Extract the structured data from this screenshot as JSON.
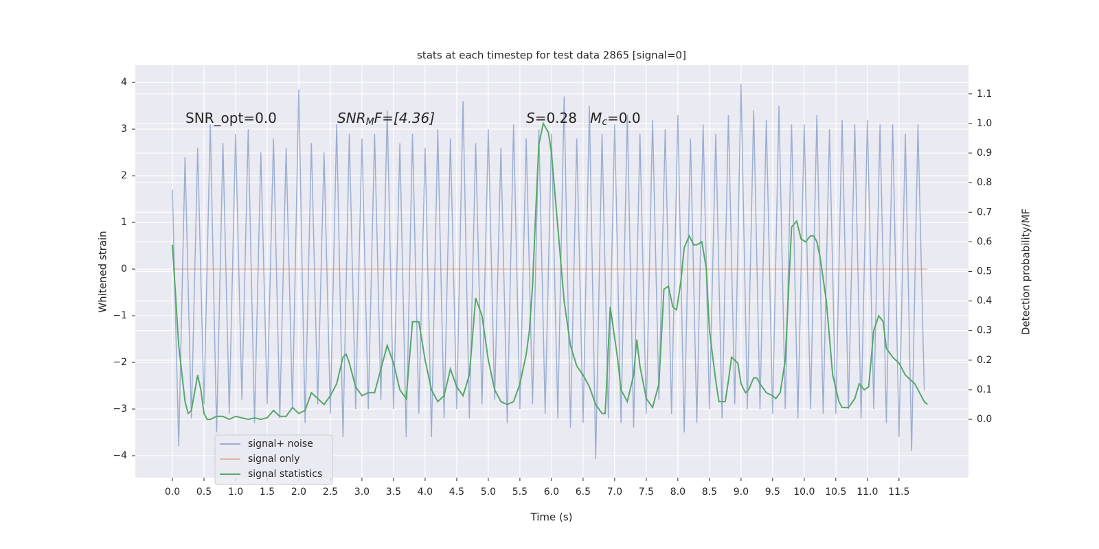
{
  "chart_data": {
    "type": "line",
    "title": "stats at each timestep for test data 2865 [signal=0]",
    "xlabel": "Time (s)",
    "ylabel": "Whitened strain",
    "y2label": "Detection probability/MF",
    "xlim": [
      -0.587,
      12.6
    ],
    "ylim": [
      -4.47,
      4.37
    ],
    "y2lim": [
      -0.197,
      1.197
    ],
    "xticks": [
      {
        "value": 0,
        "label": "0.0"
      },
      0.5,
      {
        "value": 1,
        "label": "1.0"
      },
      1.5,
      {
        "value": 2,
        "label": "2.0"
      },
      2.5,
      {
        "value": 3,
        "label": "3.0"
      },
      3.5,
      {
        "value": 4,
        "label": "4.0"
      },
      4.5,
      {
        "value": 5,
        "label": "5.0"
      },
      5.5,
      {
        "value": 6,
        "label": "6.0"
      },
      6.5,
      {
        "value": 7,
        "label": "7.0"
      },
      7.5,
      {
        "value": 8,
        "label": "8.0"
      },
      8.5,
      {
        "value": 9,
        "label": "9.0"
      },
      9.5,
      {
        "value": 10,
        "label": "10.0"
      },
      10.5,
      {
        "value": 11,
        "label": "11.0"
      },
      11.5
    ],
    "yticks": [
      {
        "value": -4,
        "label": "−4"
      },
      {
        "value": -3,
        "label": "−3"
      },
      {
        "value": -2,
        "label": "−2"
      },
      {
        "value": -1,
        "label": "−1"
      },
      0,
      1,
      2,
      3,
      4
    ],
    "y2ticks": [
      {
        "value": 0,
        "label": "0.0"
      },
      0.1,
      0.2,
      0.3,
      0.4,
      0.5,
      0.6,
      0.7,
      0.8,
      0.9,
      {
        "value": 1,
        "label": "1.0"
      },
      1.1
    ],
    "grid": true,
    "legend": "lower left",
    "annotations": [
      [
        {
          "text": "SNR_opt=0.0"
        }
      ],
      [
        {
          "text": "SNR",
          "italic": true
        },
        {
          "text": "M",
          "italic": true,
          "sub": true
        },
        {
          "text": "F=[4.36]",
          "italic": true
        }
      ],
      [
        {
          "text": "S",
          "italic": true
        },
        {
          "text": "=0.28   "
        },
        {
          "text": "M",
          "italic": true
        },
        {
          "text": "c",
          "italic": true,
          "sub": true
        },
        {
          "text": "=0.0"
        }
      ]
    ],
    "series": [
      {
        "name": "signal+ noise",
        "color": "#4c72b0",
        "opacity": 0.5,
        "x": [
          0.0,
          0.1,
          0.2,
          0.3,
          0.4,
          0.5,
          0.6,
          0.7,
          0.8,
          0.9,
          1.0,
          1.1,
          1.2,
          1.3,
          1.4,
          1.5,
          1.6,
          1.7,
          1.8,
          1.9,
          2.0,
          2.1,
          2.2,
          2.3,
          2.4,
          2.5,
          2.6,
          2.7,
          2.8,
          2.9,
          3.0,
          3.1,
          3.2,
          3.3,
          3.4,
          3.5,
          3.6,
          3.7,
          3.8,
          3.9,
          4.0,
          4.1,
          4.2,
          4.3,
          4.4,
          4.5,
          4.6,
          4.7,
          4.8,
          4.9,
          5.0,
          5.1,
          5.2,
          5.3,
          5.4,
          5.5,
          5.6,
          5.7,
          5.8,
          5.9,
          6.0,
          6.1,
          6.2,
          6.3,
          6.4,
          6.5,
          6.6,
          6.7,
          6.8,
          6.9,
          7.0,
          7.1,
          7.2,
          7.3,
          7.4,
          7.5,
          7.6,
          7.7,
          7.8,
          7.9,
          8.0,
          8.1,
          8.2,
          8.3,
          8.4,
          8.5,
          8.6,
          8.7,
          8.8,
          8.9,
          9.0,
          9.1,
          9.2,
          9.3,
          9.4,
          9.5,
          9.6,
          9.7,
          9.8,
          9.9,
          10.0,
          10.1,
          10.2,
          10.3,
          10.4,
          10.5,
          10.6,
          10.7,
          10.8,
          10.9,
          11.0,
          11.1,
          11.2,
          11.3,
          11.4,
          11.5,
          11.6,
          11.7,
          11.8,
          11.9
        ],
        "values": [
          1.7,
          -3.8,
          2.4,
          -3.2,
          2.6,
          -2.9,
          3.1,
          -3.5,
          2.7,
          -3.1,
          2.9,
          -2.8,
          3.0,
          -3.3,
          2.5,
          -2.9,
          2.8,
          -3.2,
          2.6,
          -3.0,
          3.85,
          -3.3,
          2.7,
          -2.9,
          2.5,
          -3.1,
          3.1,
          -3.6,
          2.9,
          -3.0,
          2.8,
          -3.0,
          2.9,
          -2.8,
          3.4,
          -3.0,
          2.7,
          -3.6,
          2.9,
          -3.1,
          2.6,
          -3.6,
          3.0,
          -3.2,
          2.8,
          -3.0,
          3.6,
          -3.2,
          2.7,
          -2.9,
          3.0,
          -2.8,
          2.6,
          -3.3,
          3.1,
          -3.0,
          2.8,
          -2.9,
          3.0,
          -3.1,
          2.9,
          -3.2,
          3.7,
          -3.4,
          2.8,
          -3.3,
          3.5,
          -4.07,
          2.9,
          -3.2,
          3.1,
          -3.3,
          3.3,
          -3.4,
          2.9,
          -3.1,
          3.2,
          -2.8,
          3.0,
          -3.1,
          3.3,
          -3.5,
          2.8,
          -3.3,
          3.1,
          -3.0,
          2.9,
          -3.2,
          3.3,
          -2.9,
          3.97,
          -3.0,
          3.4,
          -3.0,
          3.2,
          -3.1,
          3.5,
          -3.0,
          3.1,
          -3.2,
          3.1,
          -3.0,
          3.3,
          -3.1,
          3.0,
          -3.1,
          3.2,
          -3.0,
          3.1,
          -3.2,
          3.2,
          -3.0,
          3.1,
          -3.3,
          3.1,
          -3.6,
          2.9,
          -3.9,
          3.1,
          -2.6
        ]
      },
      {
        "name": "signal only",
        "color": "#dd8452",
        "opacity": 0.5,
        "x": [
          0.0,
          11.95
        ],
        "values": [
          0,
          0
        ]
      },
      {
        "name": "signal statistics",
        "color": "#55a868",
        "opacity": 1,
        "axis": "y2",
        "x": [
          0.0,
          0.1,
          0.2,
          0.25,
          0.3,
          0.4,
          0.45,
          0.5,
          0.55,
          0.6,
          0.7,
          0.8,
          0.9,
          1.0,
          1.1,
          1.2,
          1.3,
          1.4,
          1.5,
          1.6,
          1.7,
          1.8,
          1.9,
          2.0,
          2.1,
          2.2,
          2.3,
          2.4,
          2.5,
          2.6,
          2.7,
          2.75,
          2.8,
          2.9,
          3.0,
          3.1,
          3.2,
          3.3,
          3.4,
          3.5,
          3.6,
          3.7,
          3.8,
          3.9,
          4.0,
          4.1,
          4.2,
          4.3,
          4.4,
          4.5,
          4.6,
          4.7,
          4.8,
          4.9,
          5.0,
          5.1,
          5.2,
          5.3,
          5.4,
          5.5,
          5.6,
          5.65,
          5.7,
          5.75,
          5.8,
          5.87,
          5.95,
          6.0,
          6.1,
          6.2,
          6.3,
          6.4,
          6.5,
          6.6,
          6.7,
          6.8,
          6.85,
          6.93,
          7.05,
          7.1,
          7.2,
          7.3,
          7.35,
          7.4,
          7.5,
          7.6,
          7.7,
          7.78,
          7.85,
          7.92,
          7.98,
          8.05,
          8.1,
          8.18,
          8.25,
          8.3,
          8.38,
          8.45,
          8.5,
          8.6,
          8.65,
          8.75,
          8.8,
          8.85,
          8.95,
          9.0,
          9.07,
          9.12,
          9.2,
          9.25,
          9.3,
          9.4,
          9.5,
          9.55,
          9.62,
          9.7,
          9.8,
          9.88,
          9.95,
          10.02,
          10.1,
          10.15,
          10.2,
          10.25,
          10.35,
          10.45,
          10.55,
          10.6,
          10.7,
          10.8,
          10.87,
          10.95,
          11.02,
          11.1,
          11.18,
          11.25,
          11.3,
          11.4,
          11.5,
          11.6,
          11.7,
          11.75,
          11.8,
          11.85,
          11.9,
          11.95
        ],
        "values": [
          0.59,
          0.25,
          0.06,
          0.02,
          0.03,
          0.15,
          0.1,
          0.02,
          0.0,
          0.0,
          0.01,
          0.01,
          0.0,
          0.01,
          0.005,
          0.0,
          0.005,
          0.0,
          0.005,
          0.03,
          0.01,
          0.01,
          0.04,
          0.02,
          0.03,
          0.09,
          0.07,
          0.05,
          0.08,
          0.12,
          0.21,
          0.22,
          0.19,
          0.11,
          0.08,
          0.09,
          0.09,
          0.17,
          0.25,
          0.19,
          0.1,
          0.07,
          0.33,
          0.33,
          0.2,
          0.1,
          0.06,
          0.08,
          0.17,
          0.11,
          0.08,
          0.15,
          0.41,
          0.35,
          0.2,
          0.1,
          0.06,
          0.05,
          0.06,
          0.12,
          0.22,
          0.3,
          0.45,
          0.7,
          0.93,
          1.0,
          0.97,
          0.9,
          0.65,
          0.4,
          0.25,
          0.18,
          0.15,
          0.11,
          0.05,
          0.02,
          0.02,
          0.38,
          0.2,
          0.1,
          0.06,
          0.15,
          0.27,
          0.18,
          0.07,
          0.04,
          0.12,
          0.44,
          0.45,
          0.38,
          0.37,
          0.47,
          0.58,
          0.62,
          0.59,
          0.59,
          0.6,
          0.51,
          0.3,
          0.13,
          0.06,
          0.06,
          0.13,
          0.21,
          0.19,
          0.12,
          0.09,
          0.1,
          0.14,
          0.14,
          0.12,
          0.09,
          0.08,
          0.07,
          0.09,
          0.2,
          0.65,
          0.67,
          0.61,
          0.6,
          0.62,
          0.62,
          0.6,
          0.55,
          0.4,
          0.15,
          0.06,
          0.04,
          0.04,
          0.07,
          0.12,
          0.1,
          0.11,
          0.3,
          0.35,
          0.33,
          0.24,
          0.21,
          0.19,
          0.15,
          0.13,
          0.12,
          0.1,
          0.08,
          0.06,
          0.05
        ]
      }
    ]
  }
}
